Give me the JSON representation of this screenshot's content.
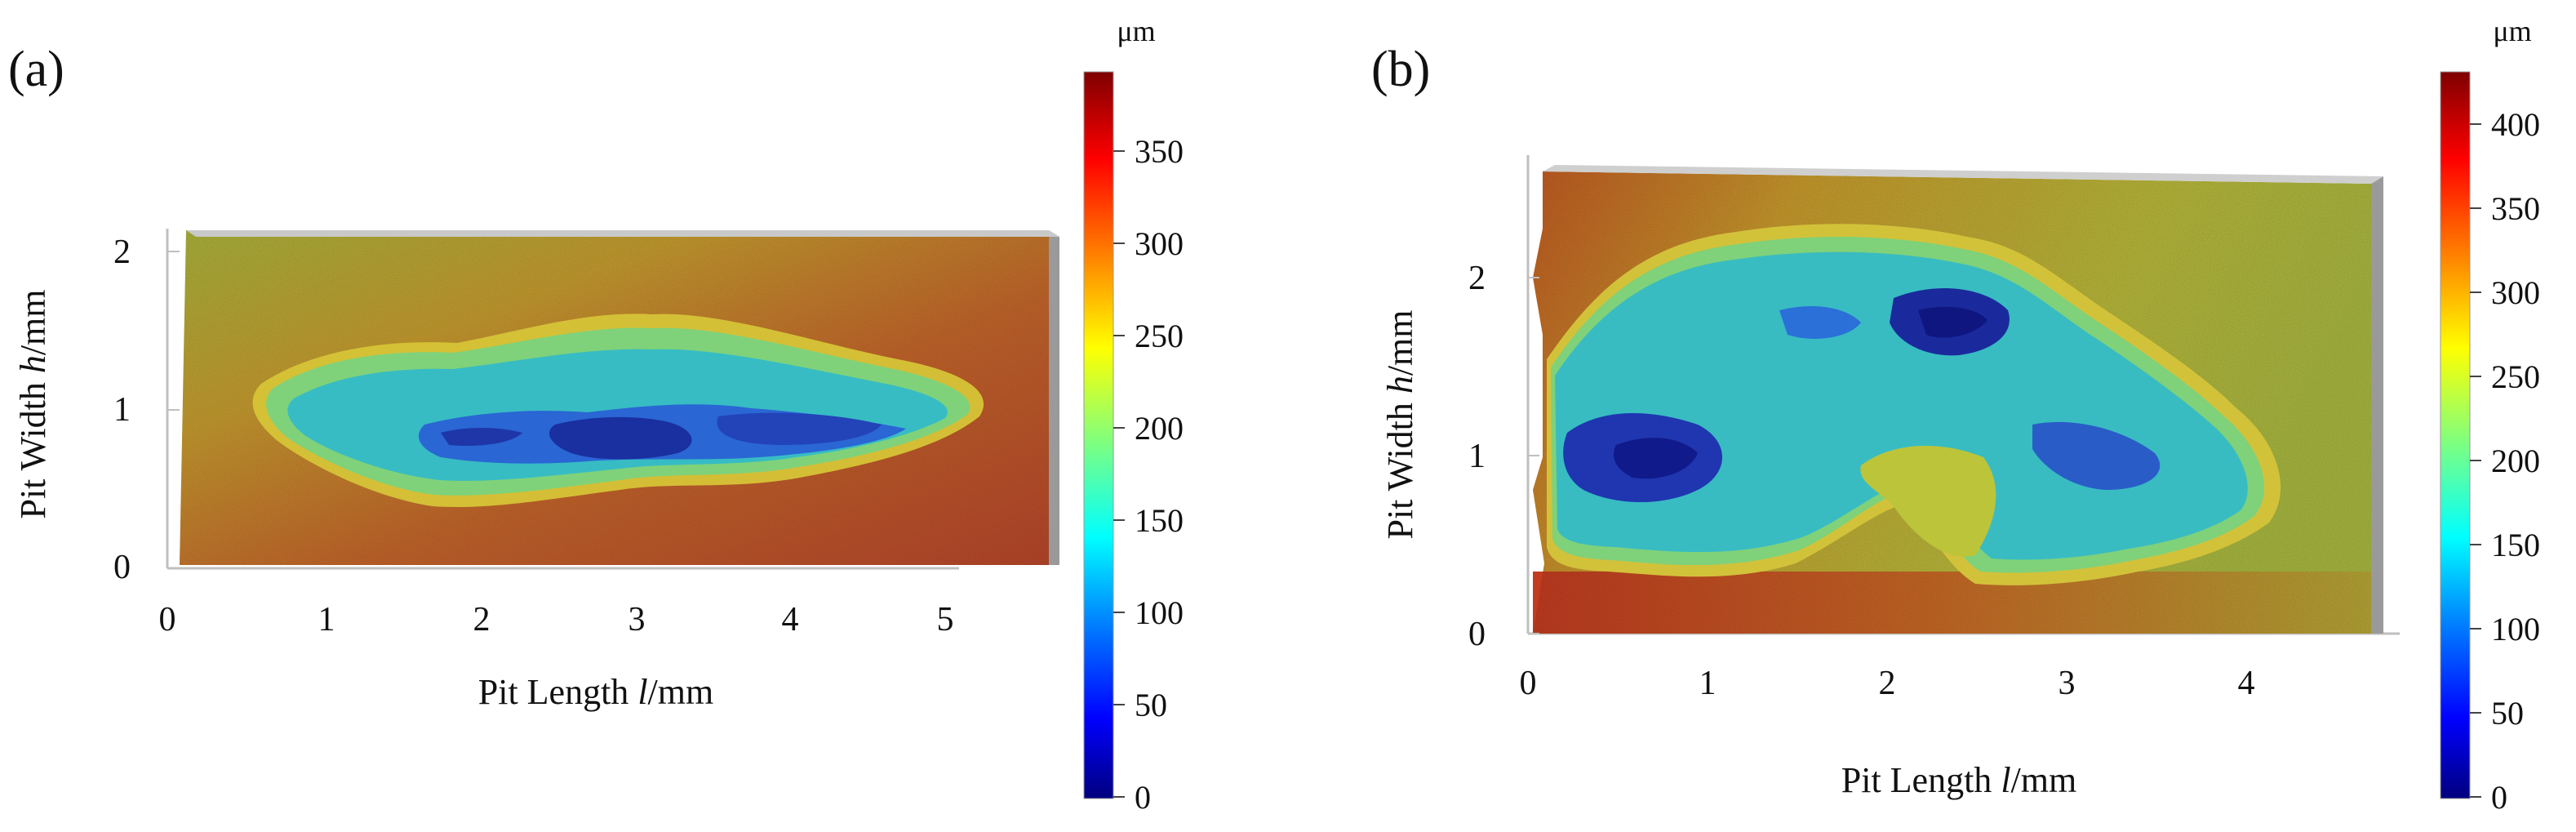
{
  "panels": {
    "a": {
      "label": "(a)",
      "x_label_prefix": "Pit Length ",
      "x_label_var": "l",
      "x_label_unit": "/mm",
      "y_label_prefix": "Pit Width ",
      "y_label_var": "h",
      "y_label_unit": "/mm",
      "x_ticks": [
        "0",
        "1",
        "2",
        "3",
        "4",
        "5"
      ],
      "y_ticks": [
        "0",
        "1",
        "2"
      ],
      "colorbar_unit": "μm",
      "colorbar_ticks": [
        "0",
        "50",
        "100",
        "150",
        "200",
        "250",
        "300",
        "350"
      ]
    },
    "b": {
      "label": "(b)",
      "x_label_prefix": "Pit Length ",
      "x_label_var": "l",
      "x_label_unit": "/mm",
      "y_label_prefix": "Pit Width ",
      "y_label_var": "h",
      "y_label_unit": "/mm",
      "x_ticks": [
        "0",
        "1",
        "2",
        "3",
        "4"
      ],
      "y_ticks": [
        "0",
        "1",
        "2"
      ],
      "colorbar_unit": "μm",
      "colorbar_ticks": [
        "0",
        "50",
        "100",
        "150",
        "200",
        "250",
        "300",
        "350",
        "400"
      ]
    }
  },
  "colors": {
    "jet": [
      "#00007f",
      "#0000ff",
      "#007fff",
      "#00ffff",
      "#7fff7f",
      "#ffff00",
      "#ff7f00",
      "#ff0000",
      "#7f0000"
    ],
    "surface_high": "#b8561f",
    "surface_mid": "#c9a233",
    "pit_mid": "#3fc3b8",
    "pit_deep": "#1a2fa8"
  }
}
